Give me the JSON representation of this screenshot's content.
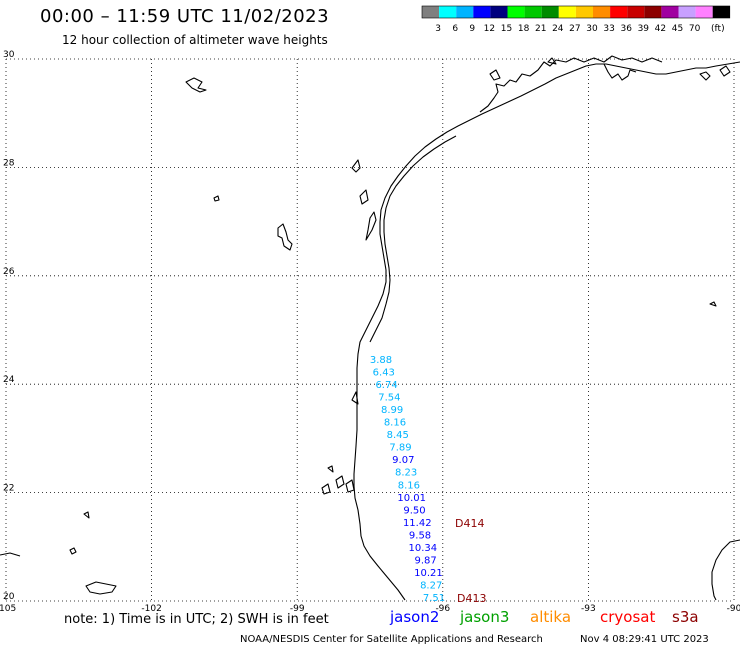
{
  "header": {
    "title": "00:00 – 11:59 UTC 11/02/2023",
    "subtitle": "12 hour collection of altimeter wave heights"
  },
  "legend": {
    "unit": "(ft)",
    "swatches": [
      {
        "color": "#7f7f7f",
        "label": ""
      },
      {
        "color": "#00ffff",
        "label": "3"
      },
      {
        "color": "#00b4ff",
        "label": "6"
      },
      {
        "color": "#0000ff",
        "label": "9"
      },
      {
        "color": "#00007f",
        "label": "12"
      },
      {
        "color": "#00ff00",
        "label": "15"
      },
      {
        "color": "#00c800",
        "label": "18"
      },
      {
        "color": "#008c00",
        "label": "21"
      },
      {
        "color": "#ffff00",
        "label": "24"
      },
      {
        "color": "#ffc800",
        "label": "27"
      },
      {
        "color": "#ff8c00",
        "label": "30"
      },
      {
        "color": "#ff0000",
        "label": "33"
      },
      {
        "color": "#c80000",
        "label": "36"
      },
      {
        "color": "#8c0000",
        "label": "39"
      },
      {
        "color": "#a000a0",
        "label": "42"
      },
      {
        "color": "#c8a0ff",
        "label": "45"
      },
      {
        "color": "#ff80ff",
        "label": "70"
      },
      {
        "color": "#000000",
        "label": ""
      }
    ]
  },
  "map": {
    "lon_range": [
      -105,
      -90
    ],
    "lat_range": [
      20,
      30
    ],
    "lon_ticks": [
      "-105",
      "-102",
      "-99",
      "-96",
      "-93",
      "-90"
    ],
    "lat_ticks": [
      "30",
      "28",
      "26",
      "24",
      "22",
      "20"
    ],
    "grid": true,
    "track_points": [
      {
        "value": "3.88",
        "color": "#00b4ff"
      },
      {
        "value": "6.43",
        "color": "#00b4ff"
      },
      {
        "value": "6.74",
        "color": "#00b4ff"
      },
      {
        "value": "7.54",
        "color": "#00b4ff"
      },
      {
        "value": "8.99",
        "color": "#00b4ff"
      },
      {
        "value": "8.16",
        "color": "#00b4ff"
      },
      {
        "value": "8.45",
        "color": "#00b4ff"
      },
      {
        "value": "7.89",
        "color": "#00b4ff"
      },
      {
        "value": "9.07",
        "color": "#0000ff"
      },
      {
        "value": "8.23",
        "color": "#00b4ff"
      },
      {
        "value": "8.16",
        "color": "#00b4ff"
      },
      {
        "value": "10.01",
        "color": "#0000ff"
      },
      {
        "value": "9.50",
        "color": "#0000ff"
      },
      {
        "value": "11.42",
        "color": "#0000ff"
      },
      {
        "value": "9.58",
        "color": "#0000ff"
      },
      {
        "value": "10.34",
        "color": "#0000ff"
      },
      {
        "value": "9.87",
        "color": "#0000ff"
      },
      {
        "value": "10.21",
        "color": "#0000ff"
      },
      {
        "value": "8.27",
        "color": "#00b4ff"
      },
      {
        "value": "7.51",
        "color": "#00b4ff"
      }
    ],
    "track_labels": [
      {
        "text": "D414",
        "color": "#8c0000"
      },
      {
        "text": "D413",
        "color": "#8c0000"
      }
    ]
  },
  "footer": {
    "note": "note: 1) Time is in UTC; 2) SWH is in feet",
    "satellites": [
      {
        "name": "jason2",
        "color": "#0000ff"
      },
      {
        "name": "jason3",
        "color": "#00a000"
      },
      {
        "name": "altika",
        "color": "#ff8c00"
      },
      {
        "name": "cryosat",
        "color": "#ff0000"
      },
      {
        "name": "s3a",
        "color": "#8c0000"
      }
    ],
    "credit": "NOAA/NESDIS Center for Satellite Applications and Research",
    "timestamp": "Nov  4 08:29:41 UTC 2023"
  }
}
